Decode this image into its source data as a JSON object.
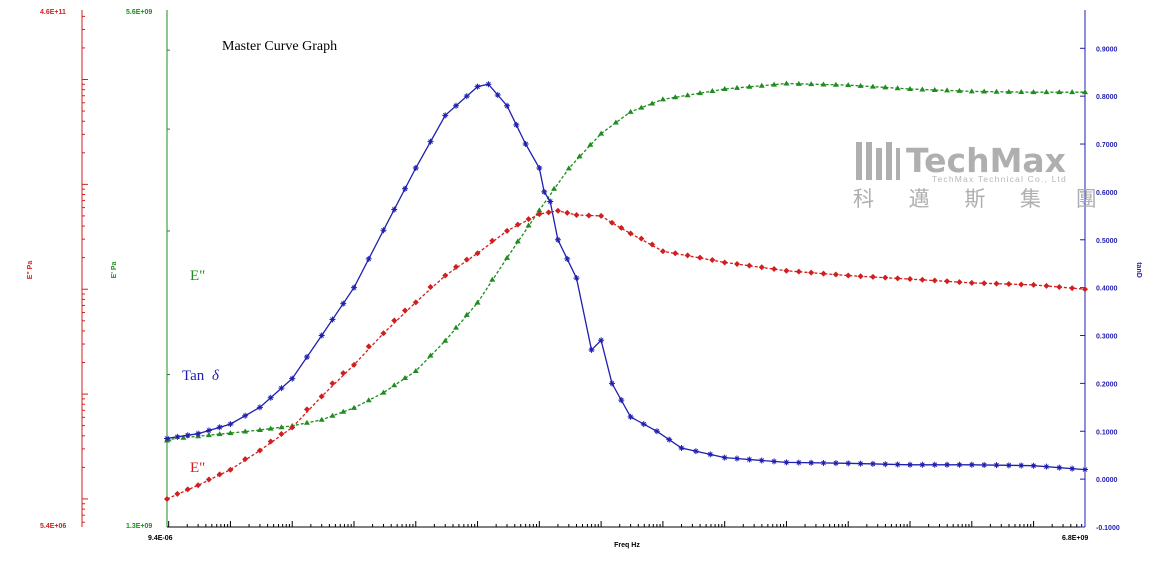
{
  "chart_data": {
    "type": "line",
    "title": "Master Curve Graph",
    "xlabel": "Freq Hz",
    "x_scale": "log",
    "xlim": [
      "9.4E-06",
      "6.8E+09"
    ],
    "axes": {
      "e_double_prime_red": {
        "label": "E\" Pa",
        "min_label": "5.4E+06",
        "max_label": "4.6E+11",
        "scale": "log",
        "color": "#d21e1e"
      },
      "e_prime_green": {
        "label": "E' Pa",
        "min_label": "1.3E+09",
        "max_label": "5.6E+09",
        "scale": "log",
        "color": "#1e8c1e"
      },
      "tan_delta_blue": {
        "label": "tanD",
        "ylim": [
          -0.1,
          0.98
        ],
        "ticks": [
          "-0.1000",
          "0.0000",
          "0.1000",
          "0.2000",
          "0.3000",
          "0.4000",
          "0.5000",
          "0.6000",
          "0.7000",
          "0.8000",
          "0.9000"
        ],
        "color": "#1f1fb0"
      }
    },
    "x_ticks": [
      "9.4E-06",
      "6.8E+09"
    ],
    "series": [
      {
        "name": "E\"",
        "marker": "triangle",
        "color": "#1e8c1e",
        "axis": "e_prime_green",
        "points": [
          [
            9.4e-06,
            1660000000.0
          ],
          [
            1e-05,
            1665000000.0
          ],
          [
            3e-05,
            1680000000.0
          ],
          [
            0.0001,
            1695000000.0
          ],
          [
            0.0003,
            1710000000.0
          ],
          [
            0.001,
            1730000000.0
          ],
          [
            0.003,
            1760000000.0
          ],
          [
            0.01,
            1820000000.0
          ],
          [
            0.03,
            1900000000.0
          ],
          [
            0.1,
            2020000000.0
          ],
          [
            0.3,
            2200000000.0
          ],
          [
            1,
            2450000000.0
          ],
          [
            3,
            2780000000.0
          ],
          [
            10,
            3180000000.0
          ],
          [
            30,
            3580000000.0
          ],
          [
            100,
            3950000000.0
          ],
          [
            300,
            4200000000.0
          ],
          [
            1000.0,
            4350000000.0
          ],
          [
            10000.0,
            4480000000.0
          ],
          [
            100000.0,
            4550000000.0
          ],
          [
            1000000.0,
            4530000000.0
          ],
          [
            10000000.0,
            4480000000.0
          ],
          [
            100000000.0,
            4450000000.0
          ],
          [
            1000000000.0,
            4440000000.0
          ],
          [
            6800000000.0,
            4440000000.0
          ]
        ]
      },
      {
        "name": "Tan δ",
        "marker": "asterisk",
        "color": "#1f1fb0",
        "axis": "tan_delta_blue",
        "points": [
          [
            9.4e-06,
            0.085
          ],
          [
            3e-05,
            0.095
          ],
          [
            0.0001,
            0.115
          ],
          [
            0.0003,
            0.15
          ],
          [
            0.001,
            0.21
          ],
          [
            0.003,
            0.3
          ],
          [
            0.01,
            0.4
          ],
          [
            0.03,
            0.52
          ],
          [
            0.1,
            0.65
          ],
          [
            0.3,
            0.76
          ],
          [
            1,
            0.82
          ],
          [
            1.5,
            0.825
          ],
          [
            3,
            0.78
          ],
          [
            6,
            0.7
          ],
          [
            10,
            0.65
          ],
          [
            12,
            0.6
          ],
          [
            15,
            0.58
          ],
          [
            20,
            0.5
          ],
          [
            40,
            0.42
          ],
          [
            70,
            0.27
          ],
          [
            100,
            0.29
          ],
          [
            150,
            0.2
          ],
          [
            300,
            0.13
          ],
          [
            800,
            0.1
          ],
          [
            2000.0,
            0.065
          ],
          [
            10000.0,
            0.045
          ],
          [
            100000.0,
            0.035
          ],
          [
            1000000.0,
            0.033
          ],
          [
            10000000.0,
            0.03
          ],
          [
            100000000.0,
            0.03
          ],
          [
            1000000000.0,
            0.028
          ],
          [
            6800000000.0,
            0.02
          ]
        ]
      },
      {
        "name": "E\"",
        "marker": "diamond",
        "color": "#d21e1e",
        "axis": "e_double_prime_red",
        "points": [
          [
            9.4e-06,
            10000000.0
          ],
          [
            3e-05,
            13500000.0
          ],
          [
            0.0001,
            19000000.0
          ],
          [
            0.0003,
            29000000.0
          ],
          [
            0.001,
            48000000.0
          ],
          [
            0.003,
            95000000.0
          ],
          [
            0.01,
            190000000.0
          ],
          [
            0.03,
            380000000.0
          ],
          [
            0.1,
            750000000.0
          ],
          [
            0.3,
            1350000000.0
          ],
          [
            1,
            2200000000.0
          ],
          [
            3,
            3600000000.0
          ],
          [
            10,
            5200000000.0
          ],
          [
            20,
            5600000000.0
          ],
          [
            40,
            5100000000.0
          ],
          [
            100,
            5000000000.0
          ],
          [
            150,
            4300000000.0
          ],
          [
            300,
            3400000000.0
          ],
          [
            1000.0,
            2300000000.0
          ],
          [
            10000.0,
            1800000000.0
          ],
          [
            100000.0,
            1500000000.0
          ],
          [
            1000000.0,
            1350000000.0
          ],
          [
            10000000.0,
            1250000000.0
          ],
          [
            100000000.0,
            1150000000.0
          ],
          [
            1000000000.0,
            1100000000.0
          ],
          [
            6800000000.0,
            1000000000.0
          ]
        ]
      }
    ],
    "annotations": {
      "green_label": "E\"",
      "blue_label": "Tan",
      "blue_symbol": "δ",
      "red_label": "E\""
    },
    "grid": false
  },
  "logo": {
    "name": "TechMax",
    "subtitle": "TechMax Technical Co., Ltd",
    "chinese": "科 邁 斯 集 團"
  }
}
